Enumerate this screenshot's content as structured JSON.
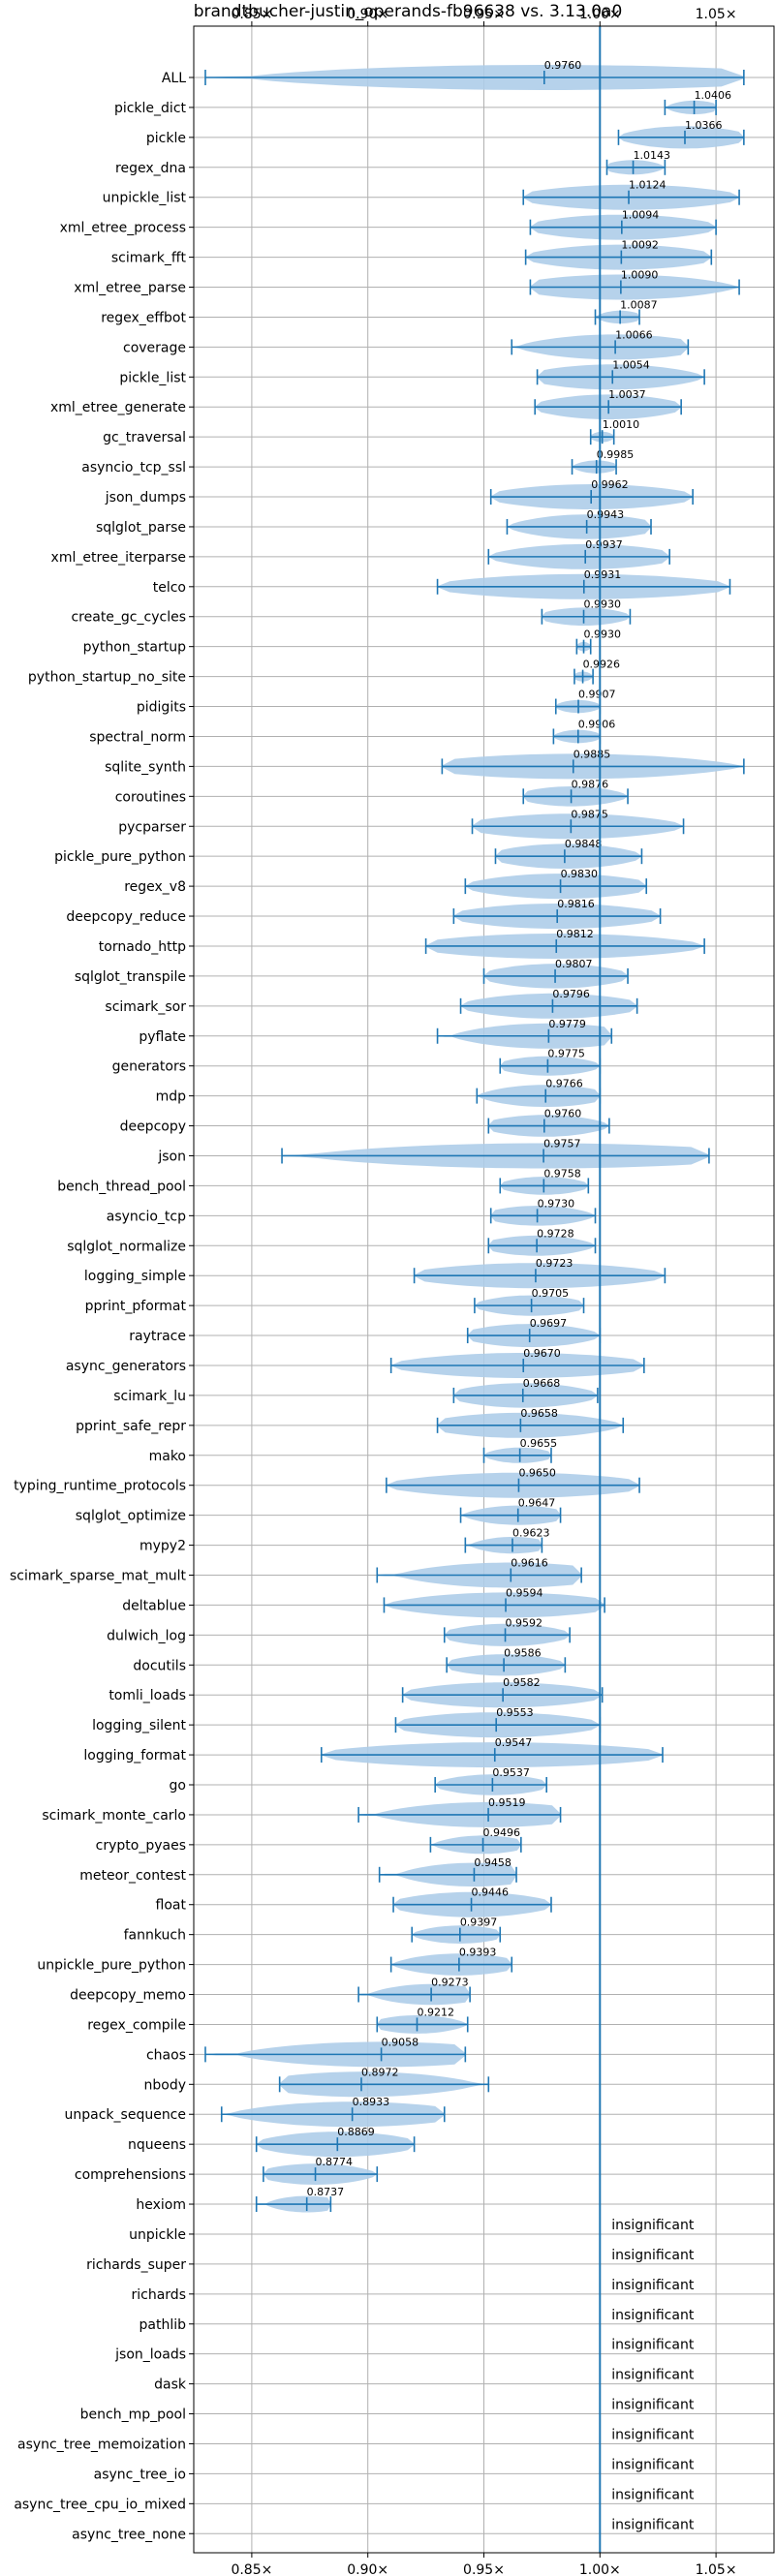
{
  "chart_data": {
    "type": "violin",
    "title": "brandtbucher-justin_operands-fb96638 vs. 3.13.0a0",
    "xlabel": "",
    "ylabel": "",
    "xlim": [
      0.825,
      1.075
    ],
    "x_ticks": [
      0.85,
      0.9,
      0.95,
      1.0,
      1.05
    ],
    "x_tick_labels": [
      "0.85×",
      "0.90×",
      "0.95×",
      "1.00×",
      "1.05×"
    ],
    "reference_line": 1.0,
    "grid": true,
    "colors": {
      "violin": "#aecde9",
      "line": "#1f77b4",
      "grid": "#b0b0b0"
    },
    "insignificant_label": "insignificant",
    "benchmarks": [
      {
        "name": "ALL",
        "value": 0.976,
        "label": "0.9760",
        "lo": 0.83,
        "hi": 1.062
      },
      {
        "name": "pickle_dict",
        "value": 1.0406,
        "label": "1.0406",
        "lo": 1.028,
        "hi": 1.05
      },
      {
        "name": "pickle",
        "value": 1.0366,
        "label": "1.0366",
        "lo": 1.008,
        "hi": 1.062
      },
      {
        "name": "regex_dna",
        "value": 1.0143,
        "label": "1.0143",
        "lo": 1.003,
        "hi": 1.028
      },
      {
        "name": "unpickle_list",
        "value": 1.0124,
        "label": "1.0124",
        "lo": 0.967,
        "hi": 1.06
      },
      {
        "name": "xml_etree_process",
        "value": 1.0094,
        "label": "1.0094",
        "lo": 0.97,
        "hi": 1.05
      },
      {
        "name": "scimark_fft",
        "value": 1.0092,
        "label": "1.0092",
        "lo": 0.968,
        "hi": 1.048
      },
      {
        "name": "xml_etree_parse",
        "value": 1.009,
        "label": "1.0090",
        "lo": 0.97,
        "hi": 1.06
      },
      {
        "name": "regex_effbot",
        "value": 1.0087,
        "label": "1.0087",
        "lo": 0.998,
        "hi": 1.017
      },
      {
        "name": "coverage",
        "value": 1.0066,
        "label": "1.0066",
        "lo": 0.962,
        "hi": 1.038
      },
      {
        "name": "pickle_list",
        "value": 1.0054,
        "label": "1.0054",
        "lo": 0.973,
        "hi": 1.045
      },
      {
        "name": "xml_etree_generate",
        "value": 1.0037,
        "label": "1.0037",
        "lo": 0.972,
        "hi": 1.035
      },
      {
        "name": "gc_traversal",
        "value": 1.001,
        "label": "1.0010",
        "lo": 0.996,
        "hi": 1.006
      },
      {
        "name": "asyncio_tcp_ssl",
        "value": 0.9985,
        "label": "0.9985",
        "lo": 0.988,
        "hi": 1.007
      },
      {
        "name": "json_dumps",
        "value": 0.9962,
        "label": "0.9962",
        "lo": 0.953,
        "hi": 1.04
      },
      {
        "name": "sqlglot_parse",
        "value": 0.9943,
        "label": "0.9943",
        "lo": 0.96,
        "hi": 1.022
      },
      {
        "name": "xml_etree_iterparse",
        "value": 0.9937,
        "label": "0.9937",
        "lo": 0.952,
        "hi": 1.03
      },
      {
        "name": "telco",
        "value": 0.9931,
        "label": "0.9931",
        "lo": 0.93,
        "hi": 1.056
      },
      {
        "name": "create_gc_cycles",
        "value": 0.993,
        "label": "0.9930",
        "lo": 0.975,
        "hi": 1.013
      },
      {
        "name": "python_startup",
        "value": 0.993,
        "label": "0.9930",
        "lo": 0.99,
        "hi": 0.996
      },
      {
        "name": "python_startup_no_site",
        "value": 0.9926,
        "label": "0.9926",
        "lo": 0.989,
        "hi": 0.997
      },
      {
        "name": "pidigits",
        "value": 0.9907,
        "label": "0.9907",
        "lo": 0.981,
        "hi": 1.0
      },
      {
        "name": "spectral_norm",
        "value": 0.9906,
        "label": "0.9906",
        "lo": 0.98,
        "hi": 1.0
      },
      {
        "name": "sqlite_synth",
        "value": 0.9885,
        "label": "0.9885",
        "lo": 0.932,
        "hi": 1.062
      },
      {
        "name": "coroutines",
        "value": 0.9876,
        "label": "0.9876",
        "lo": 0.967,
        "hi": 1.012
      },
      {
        "name": "pycparser",
        "value": 0.9875,
        "label": "0.9875",
        "lo": 0.945,
        "hi": 1.036
      },
      {
        "name": "pickle_pure_python",
        "value": 0.9848,
        "label": "0.9848",
        "lo": 0.955,
        "hi": 1.018
      },
      {
        "name": "regex_v8",
        "value": 0.983,
        "label": "0.9830",
        "lo": 0.942,
        "hi": 1.02
      },
      {
        "name": "deepcopy_reduce",
        "value": 0.9816,
        "label": "0.9816",
        "lo": 0.937,
        "hi": 1.026
      },
      {
        "name": "tornado_http",
        "value": 0.9812,
        "label": "0.9812",
        "lo": 0.925,
        "hi": 1.045
      },
      {
        "name": "sqlglot_transpile",
        "value": 0.9807,
        "label": "0.9807",
        "lo": 0.95,
        "hi": 1.012
      },
      {
        "name": "scimark_sor",
        "value": 0.9796,
        "label": "0.9796",
        "lo": 0.94,
        "hi": 1.016
      },
      {
        "name": "pyflate",
        "value": 0.9779,
        "label": "0.9779",
        "lo": 0.93,
        "hi": 1.005
      },
      {
        "name": "generators",
        "value": 0.9775,
        "label": "0.9775",
        "lo": 0.957,
        "hi": 1.0
      },
      {
        "name": "mdp",
        "value": 0.9766,
        "label": "0.9766",
        "lo": 0.947,
        "hi": 1.0
      },
      {
        "name": "deepcopy",
        "value": 0.976,
        "label": "0.9760",
        "lo": 0.952,
        "hi": 1.004
      },
      {
        "name": "json",
        "value": 0.9757,
        "label": "0.9757",
        "lo": 0.863,
        "hi": 1.047
      },
      {
        "name": "bench_thread_pool",
        "value": 0.9758,
        "label": "0.9758",
        "lo": 0.957,
        "hi": 0.995
      },
      {
        "name": "asyncio_tcp",
        "value": 0.973,
        "label": "0.9730",
        "lo": 0.953,
        "hi": 0.998
      },
      {
        "name": "sqlglot_normalize",
        "value": 0.9728,
        "label": "0.9728",
        "lo": 0.952,
        "hi": 0.998
      },
      {
        "name": "logging_simple",
        "value": 0.9723,
        "label": "0.9723",
        "lo": 0.92,
        "hi": 1.028
      },
      {
        "name": "pprint_pformat",
        "value": 0.9705,
        "label": "0.9705",
        "lo": 0.946,
        "hi": 0.993
      },
      {
        "name": "raytrace",
        "value": 0.9697,
        "label": "0.9697",
        "lo": 0.943,
        "hi": 1.0
      },
      {
        "name": "async_generators",
        "value": 0.967,
        "label": "0.9670",
        "lo": 0.91,
        "hi": 1.019
      },
      {
        "name": "scimark_lu",
        "value": 0.9668,
        "label": "0.9668",
        "lo": 0.937,
        "hi": 0.999
      },
      {
        "name": "pprint_safe_repr",
        "value": 0.9658,
        "label": "0.9658",
        "lo": 0.93,
        "hi": 1.01
      },
      {
        "name": "mako",
        "value": 0.9655,
        "label": "0.9655",
        "lo": 0.95,
        "hi": 0.979
      },
      {
        "name": "typing_runtime_protocols",
        "value": 0.965,
        "label": "0.9650",
        "lo": 0.908,
        "hi": 1.017
      },
      {
        "name": "sqlglot_optimize",
        "value": 0.9647,
        "label": "0.9647",
        "lo": 0.94,
        "hi": 0.983
      },
      {
        "name": "mypy2",
        "value": 0.9623,
        "label": "0.9623",
        "lo": 0.942,
        "hi": 0.975
      },
      {
        "name": "scimark_sparse_mat_mult",
        "value": 0.9616,
        "label": "0.9616",
        "lo": 0.904,
        "hi": 0.992
      },
      {
        "name": "deltablue",
        "value": 0.9594,
        "label": "0.9594",
        "lo": 0.907,
        "hi": 1.002
      },
      {
        "name": "dulwich_log",
        "value": 0.9592,
        "label": "0.9592",
        "lo": 0.933,
        "hi": 0.987
      },
      {
        "name": "docutils",
        "value": 0.9586,
        "label": "0.9586",
        "lo": 0.934,
        "hi": 0.985
      },
      {
        "name": "tomli_loads",
        "value": 0.9582,
        "label": "0.9582",
        "lo": 0.915,
        "hi": 1.001
      },
      {
        "name": "logging_silent",
        "value": 0.9553,
        "label": "0.9553",
        "lo": 0.912,
        "hi": 1.0
      },
      {
        "name": "logging_format",
        "value": 0.9547,
        "label": "0.9547",
        "lo": 0.88,
        "hi": 1.027
      },
      {
        "name": "go",
        "value": 0.9537,
        "label": "0.9537",
        "lo": 0.929,
        "hi": 0.977
      },
      {
        "name": "scimark_monte_carlo",
        "value": 0.9519,
        "label": "0.9519",
        "lo": 0.896,
        "hi": 0.983
      },
      {
        "name": "crypto_pyaes",
        "value": 0.9496,
        "label": "0.9496",
        "lo": 0.927,
        "hi": 0.966
      },
      {
        "name": "meteor_contest",
        "value": 0.9458,
        "label": "0.9458",
        "lo": 0.905,
        "hi": 0.964
      },
      {
        "name": "float",
        "value": 0.9446,
        "label": "0.9446",
        "lo": 0.911,
        "hi": 0.979
      },
      {
        "name": "fannkuch",
        "value": 0.9397,
        "label": "0.9397",
        "lo": 0.919,
        "hi": 0.957
      },
      {
        "name": "unpickle_pure_python",
        "value": 0.9393,
        "label": "0.9393",
        "lo": 0.91,
        "hi": 0.962
      },
      {
        "name": "deepcopy_memo",
        "value": 0.9273,
        "label": "0.9273",
        "lo": 0.896,
        "hi": 0.944
      },
      {
        "name": "regex_compile",
        "value": 0.9212,
        "label": "0.9212",
        "lo": 0.904,
        "hi": 0.943
      },
      {
        "name": "chaos",
        "value": 0.9058,
        "label": "0.9058",
        "lo": 0.83,
        "hi": 0.942
      },
      {
        "name": "nbody",
        "value": 0.8972,
        "label": "0.8972",
        "lo": 0.862,
        "hi": 0.952
      },
      {
        "name": "unpack_sequence",
        "value": 0.8933,
        "label": "0.8933",
        "lo": 0.837,
        "hi": 0.933
      },
      {
        "name": "nqueens",
        "value": 0.8869,
        "label": "0.8869",
        "lo": 0.852,
        "hi": 0.92
      },
      {
        "name": "comprehensions",
        "value": 0.8774,
        "label": "0.8774",
        "lo": 0.855,
        "hi": 0.904
      },
      {
        "name": "hexiom",
        "value": 0.8737,
        "label": "0.8737",
        "lo": 0.852,
        "hi": 0.884
      },
      {
        "name": "unpickle",
        "insignificant": true
      },
      {
        "name": "richards_super",
        "insignificant": true
      },
      {
        "name": "richards",
        "insignificant": true
      },
      {
        "name": "pathlib",
        "insignificant": true
      },
      {
        "name": "json_loads",
        "insignificant": true
      },
      {
        "name": "dask",
        "insignificant": true
      },
      {
        "name": "bench_mp_pool",
        "insignificant": true
      },
      {
        "name": "async_tree_memoization",
        "insignificant": true
      },
      {
        "name": "async_tree_io",
        "insignificant": true
      },
      {
        "name": "async_tree_cpu_io_mixed",
        "insignificant": true
      },
      {
        "name": "async_tree_none",
        "insignificant": true
      }
    ]
  }
}
